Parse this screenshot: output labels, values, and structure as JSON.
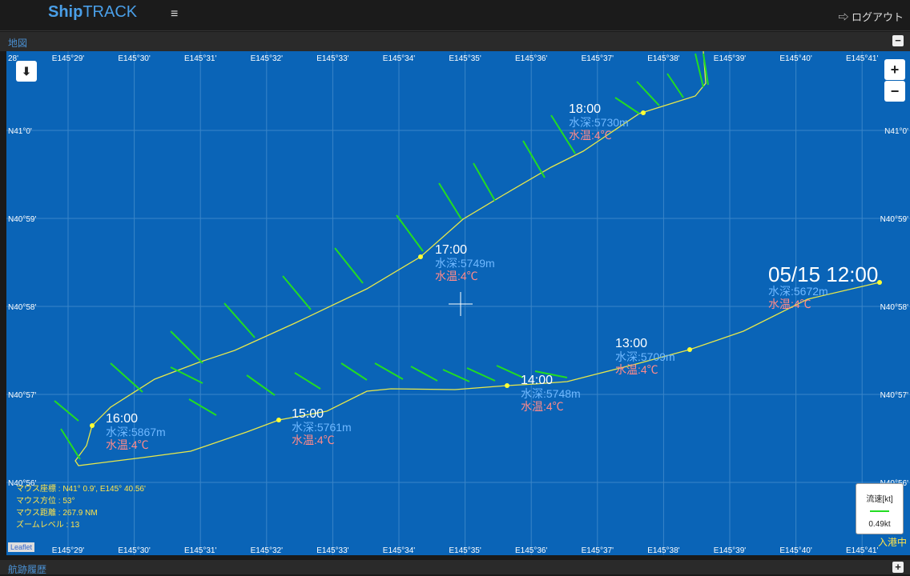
{
  "header": {
    "brand_bold": "Ship",
    "brand_rest": "TRACK",
    "menu_icon": "≡",
    "logout_label": "ログアウト",
    "logout_icon": "logout-icon"
  },
  "map_panel": {
    "title": "地図",
    "toggle": "−"
  },
  "history_panel": {
    "title": "航跡履歴",
    "toggle": "+"
  },
  "map": {
    "lon_labels": [
      "E145°29'",
      "E145°30'",
      "E145°31'",
      "E145°32'",
      "E145°33'",
      "E145°34'",
      "E145°35'",
      "E145°36'",
      "E145°37'",
      "E145°38'",
      "E145°39'",
      "E145°40'",
      "E145°41'"
    ],
    "lat_labels": [
      "N41°0'",
      "N40°59'",
      "N40°58'",
      "N40°57'",
      "N40°56'"
    ],
    "left_partial": "28'",
    "zoom_in": "+",
    "zoom_out": "−",
    "download_icon": "download-icon"
  },
  "track_labels": [
    {
      "time": "18:00",
      "depth": "水深:5730m",
      "temp": "水温:4℃"
    },
    {
      "time": "17:00",
      "depth": "水深:5749m",
      "temp": "水温:4℃"
    },
    {
      "time": "05/15 12:00",
      "depth": "水深:5672m",
      "temp": "水温:4℃"
    },
    {
      "time": "13:00",
      "depth": "水深:5709m",
      "temp": "水温:4℃"
    },
    {
      "time": "14:00",
      "depth": "水深:5748m",
      "temp": "水温:4℃"
    },
    {
      "time": "15:00",
      "depth": "水深:5761m",
      "temp": "水温:4℃"
    },
    {
      "time": "16:00",
      "depth": "水深:5867m",
      "temp": "水温:4℃"
    }
  ],
  "info": {
    "mouse_coord": "マウス座標 : N41° 0.9', E145° 40.56'",
    "mouse_bearing": "マウス方位 : 53°",
    "mouse_distance": "マウス距離 : 267.9 NM",
    "zoom_level": "ズームレベル : 13"
  },
  "legend": {
    "title": "流速[kt]",
    "value": "0.49kt"
  },
  "status": "入港中",
  "attribution": "Leaflet",
  "colors": {
    "sea": "#0a64b7",
    "track": "#e8e84a",
    "arrow": "#22dd22",
    "depth": "#6fb8ff",
    "temp": "#ff8a8a"
  }
}
